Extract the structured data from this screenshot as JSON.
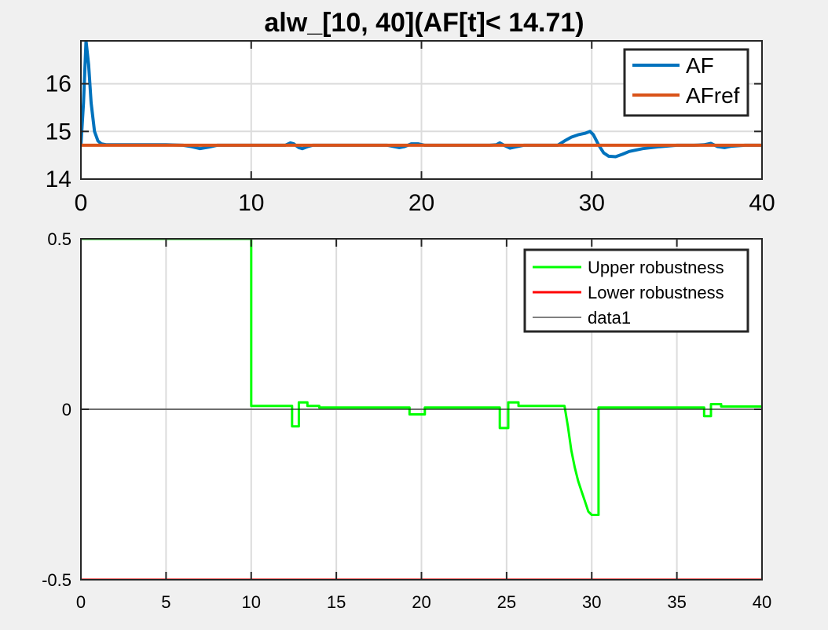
{
  "figure": {
    "background": "#f0f0f0",
    "title": "alw_[10, 40](AF[t]< 14.71)"
  },
  "chart_data": [
    {
      "type": "line",
      "xlim": [
        0,
        40
      ],
      "ylim": [
        14,
        16.9
      ],
      "x_ticks": [
        0,
        10,
        20,
        30,
        40
      ],
      "x_tick_labels": [
        "0",
        "10",
        "20",
        "30",
        "40"
      ],
      "y_ticks": [
        14,
        15,
        16
      ],
      "y_tick_labels": [
        "14",
        "15",
        "16"
      ],
      "grid": true,
      "legend": "top-right",
      "series": [
        {
          "name": "AF",
          "color": "#0072BD",
          "x": [
            0,
            0.15,
            0.3,
            0.45,
            0.6,
            0.8,
            1.0,
            1.2,
            1.5,
            2,
            3,
            5,
            6,
            6.5,
            7,
            7.5,
            8,
            9,
            10,
            11,
            12,
            12.3,
            12.5,
            12.8,
            13.0,
            13.3,
            13.6,
            14,
            15,
            16,
            17,
            18,
            18.7,
            19.0,
            19.4,
            19.8,
            20.2,
            21,
            22,
            23,
            24,
            24.4,
            24.6,
            24.9,
            25.2,
            25.6,
            26,
            27,
            28,
            28.4,
            28.8,
            29.2,
            29.6,
            29.9,
            30.1,
            30.4,
            30.7,
            31.0,
            31.4,
            31.8,
            32.2,
            33,
            34,
            35,
            36,
            36.6,
            37.0,
            37.4,
            37.8,
            38.2,
            39,
            40
          ],
          "y": [
            14.71,
            15.6,
            16.9,
            16.4,
            15.6,
            15.0,
            14.8,
            14.74,
            14.72,
            14.72,
            14.72,
            14.72,
            14.71,
            14.68,
            14.64,
            14.67,
            14.71,
            14.71,
            14.71,
            14.71,
            14.71,
            14.76,
            14.74,
            14.66,
            14.64,
            14.68,
            14.71,
            14.71,
            14.71,
            14.71,
            14.71,
            14.71,
            14.66,
            14.68,
            14.74,
            14.74,
            14.71,
            14.71,
            14.71,
            14.71,
            14.71,
            14.72,
            14.76,
            14.7,
            14.65,
            14.68,
            14.71,
            14.71,
            14.71,
            14.8,
            14.88,
            14.93,
            14.96,
            15.0,
            14.93,
            14.72,
            14.55,
            14.48,
            14.47,
            14.52,
            14.58,
            14.64,
            14.68,
            14.71,
            14.71,
            14.72,
            14.75,
            14.68,
            14.66,
            14.69,
            14.71,
            14.71
          ]
        },
        {
          "name": "AFref",
          "color": "#D95319",
          "x": [
            0,
            40
          ],
          "y": [
            14.71,
            14.71
          ]
        }
      ]
    },
    {
      "type": "line",
      "xlim": [
        0,
        40
      ],
      "ylim": [
        -0.5,
        0.5
      ],
      "x_ticks": [
        0,
        5,
        10,
        15,
        20,
        25,
        30,
        35,
        40
      ],
      "x_tick_labels": [
        "0",
        "5",
        "10",
        "15",
        "20",
        "25",
        "30",
        "35",
        "40"
      ],
      "y_ticks": [
        -0.5,
        0,
        0.5
      ],
      "y_tick_labels": [
        "-0.5",
        "0",
        "0.5"
      ],
      "grid": true,
      "legend": "top-right",
      "series": [
        {
          "name": "Upper robustness",
          "color": "#00ff00",
          "x": [
            0,
            10,
            10,
            12.4,
            12.4,
            12.8,
            12.8,
            13.3,
            13.3,
            14,
            14,
            19.3,
            19.3,
            20.2,
            20.2,
            24.6,
            24.6,
            25.1,
            25.1,
            25.7,
            25.7,
            28.4,
            28.6,
            28.8,
            29.0,
            29.2,
            29.4,
            29.6,
            29.8,
            30.0,
            30.4,
            30.4,
            36.6,
            36.6,
            37.0,
            37.0,
            37.6,
            37.6,
            40
          ],
          "y": [
            0.5,
            0.5,
            0.01,
            0.01,
            -0.05,
            -0.05,
            0.02,
            0.02,
            0.01,
            0.01,
            0.005,
            0.005,
            -0.015,
            -0.015,
            0.005,
            0.005,
            -0.055,
            -0.055,
            0.02,
            0.02,
            0.01,
            0.01,
            -0.05,
            -0.12,
            -0.17,
            -0.21,
            -0.24,
            -0.27,
            -0.3,
            -0.31,
            -0.31,
            0.005,
            0.005,
            -0.02,
            -0.02,
            0.015,
            0.015,
            0.008,
            0.008
          ]
        },
        {
          "name": "Lower robustness",
          "color": "#ff0000",
          "x": [
            0,
            40
          ],
          "y": [
            -0.5,
            -0.5
          ]
        },
        {
          "name": "data1",
          "color": "#000000",
          "x": [
            0,
            40
          ],
          "y": [
            0,
            0
          ]
        }
      ]
    }
  ]
}
